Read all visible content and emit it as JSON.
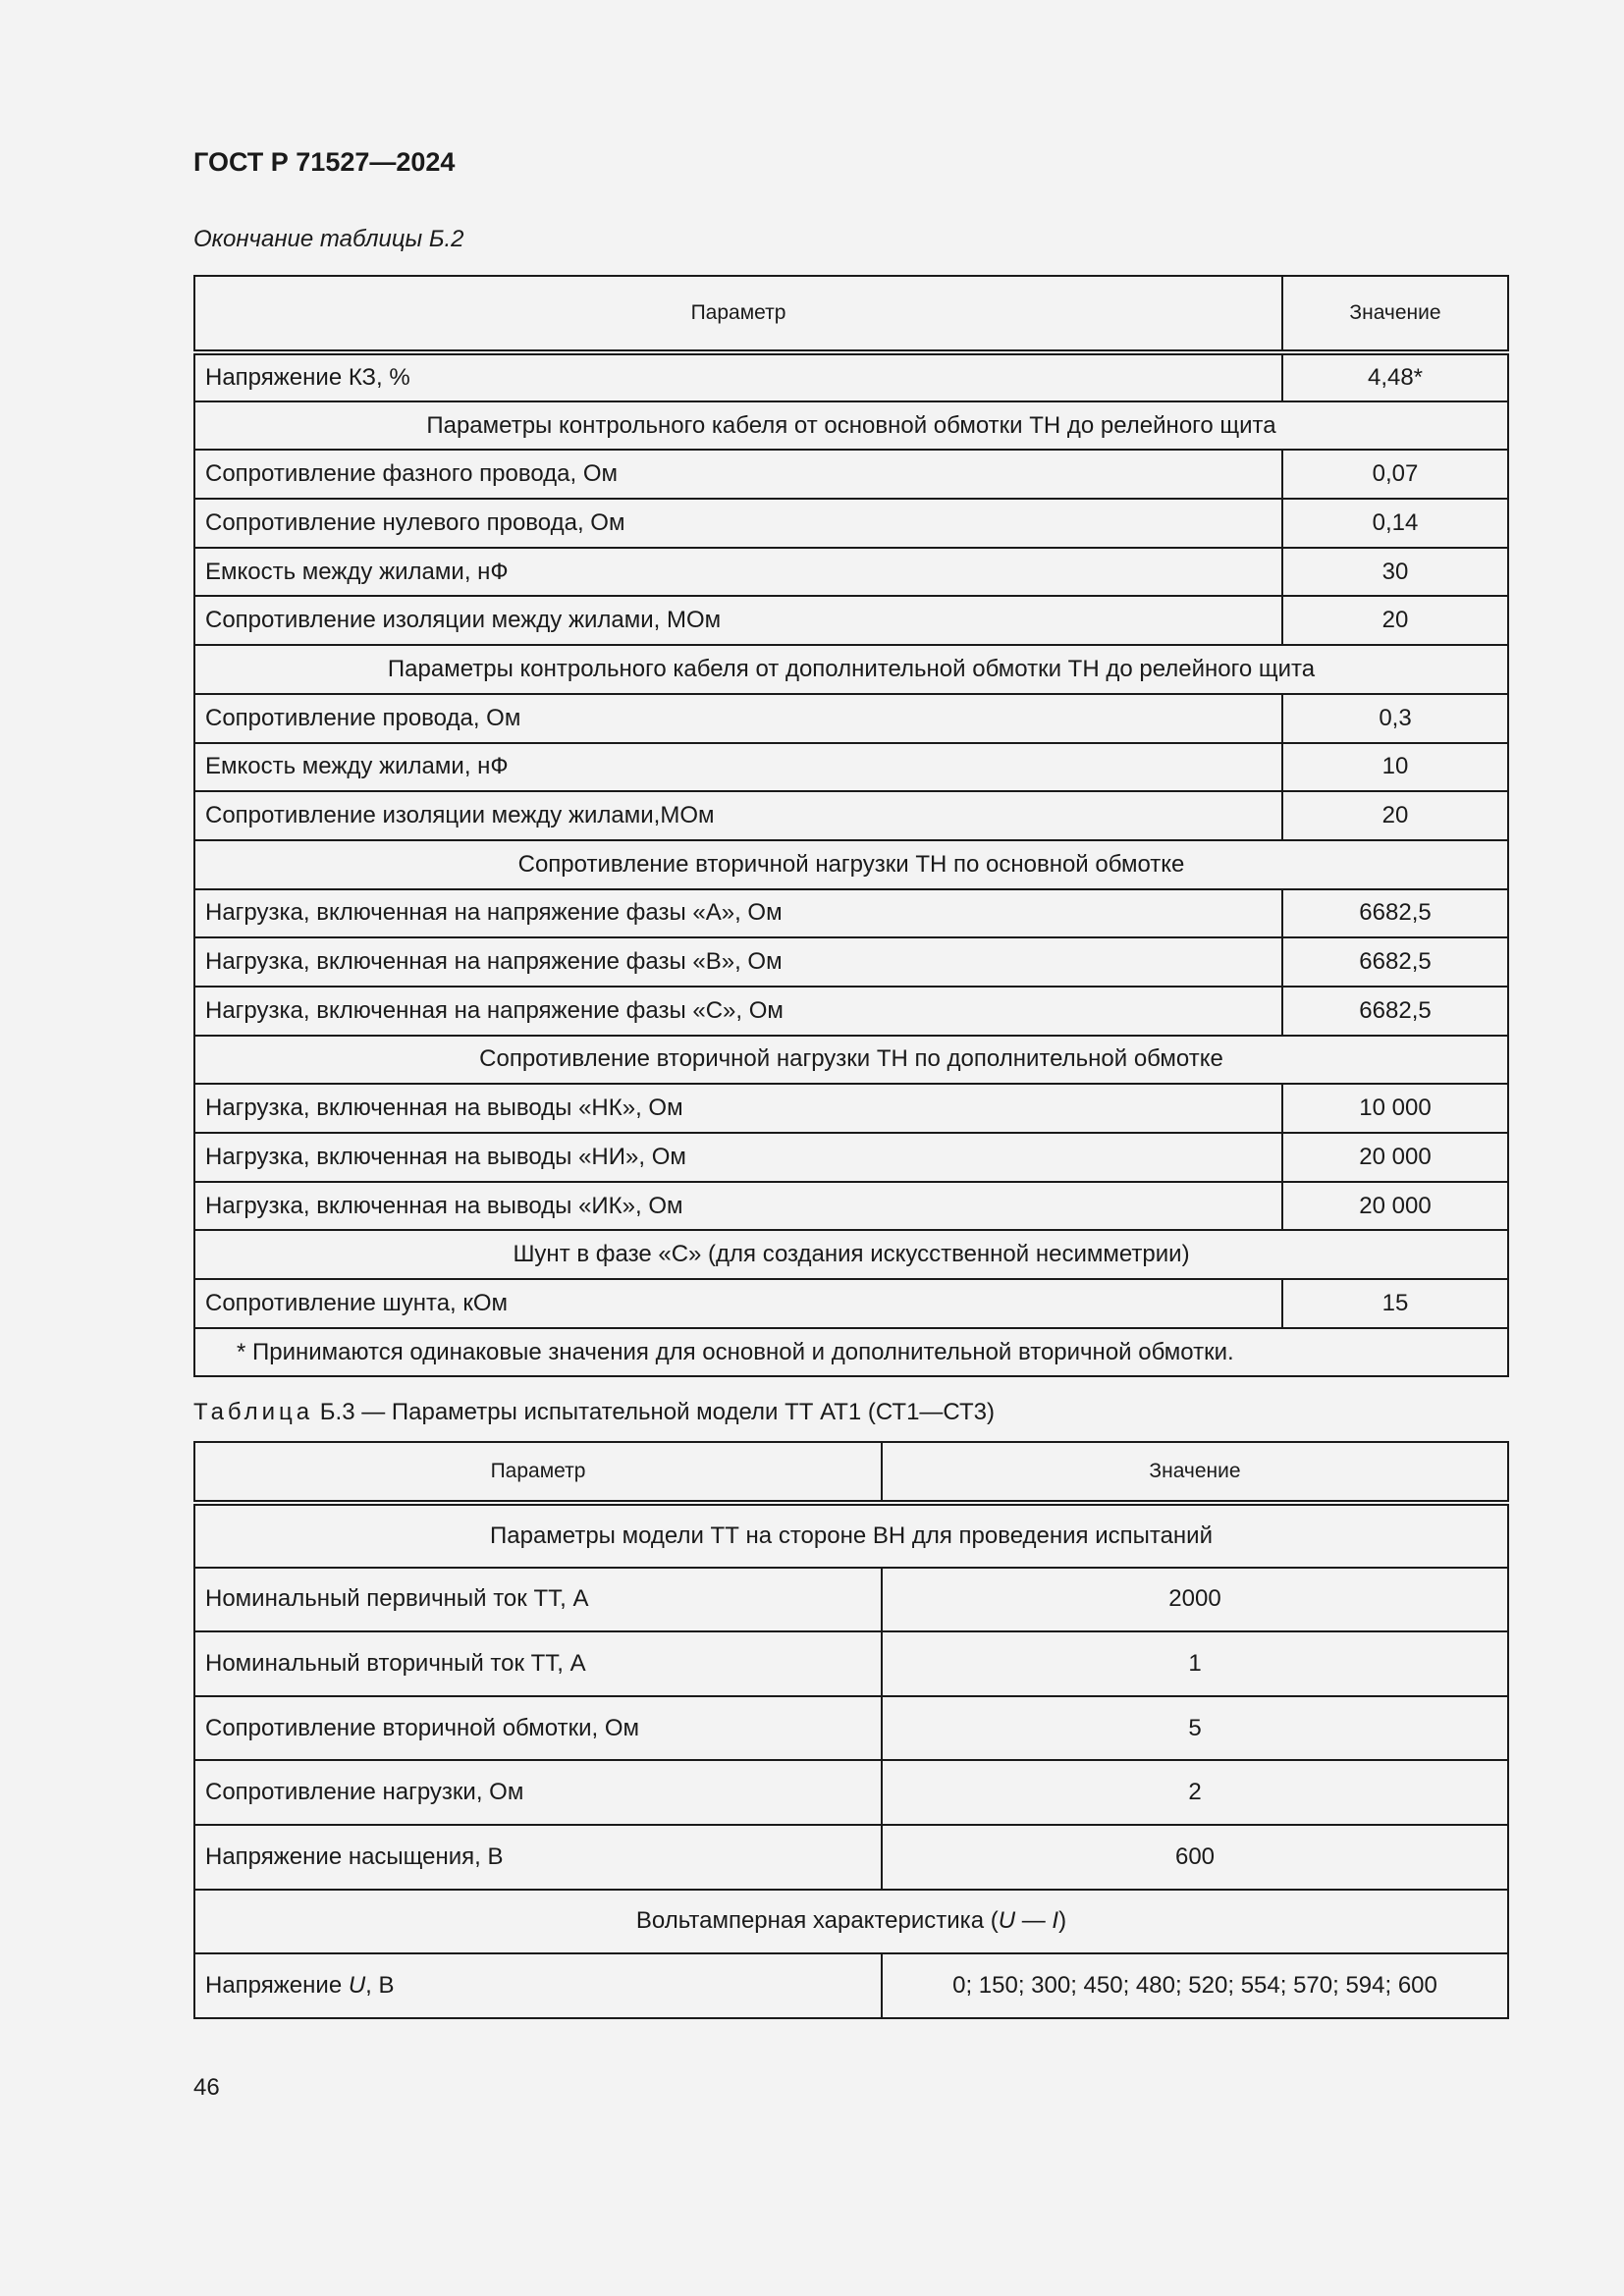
{
  "header": {
    "doc_title": "ГОСТ Р 71527—2024"
  },
  "table_b2": {
    "caption": "Окончание таблицы Б.2",
    "columns": [
      "Параметр",
      "Значение"
    ],
    "rows": [
      {
        "type": "row",
        "param": "Напряжение КЗ, %",
        "value": "4,48*"
      },
      {
        "type": "section",
        "param": "Параметры контрольного кабеля от основной обмотки ТН до релейного щита"
      },
      {
        "type": "row",
        "param": "Сопротивление фазного провода, Ом",
        "value": "0,07"
      },
      {
        "type": "row",
        "param": "Сопротивление нулевого провода, Ом",
        "value": "0,14"
      },
      {
        "type": "row",
        "param": "Емкость между жилами, нФ",
        "value": "30"
      },
      {
        "type": "row",
        "param": "Сопротивление изоляции между жилами, МОм",
        "value": "20"
      },
      {
        "type": "section",
        "param": "Параметры контрольного кабеля от дополнительной обмотки ТН до релейного щита"
      },
      {
        "type": "row",
        "param": "Сопротивление провода, Ом",
        "value": "0,3"
      },
      {
        "type": "row",
        "param": "Емкость между жилами, нФ",
        "value": "10"
      },
      {
        "type": "row",
        "param": "Сопротивление изоляции между жилами,МОм",
        "value": "20"
      },
      {
        "type": "section",
        "param": "Сопротивление вторичной нагрузки ТН по основной обмотке"
      },
      {
        "type": "row",
        "param": "Нагрузка, включенная на напряжение фазы «А», Ом",
        "value": "6682,5"
      },
      {
        "type": "row",
        "param": "Нагрузка, включенная на напряжение фазы «В», Ом",
        "value": "6682,5"
      },
      {
        "type": "row",
        "param": "Нагрузка, включенная на напряжение фазы «С», Ом",
        "value": "6682,5"
      },
      {
        "type": "section",
        "param": "Сопротивление вторичной нагрузки ТН по дополнительной обмотке"
      },
      {
        "type": "row",
        "param": "Нагрузка, включенная на выводы «НК», Ом",
        "value": "10 000"
      },
      {
        "type": "row",
        "param": "Нагрузка, включенная на выводы «НИ», Ом",
        "value": "20 000"
      },
      {
        "type": "row",
        "param": "Нагрузка, включенная на выводы «ИК», Ом",
        "value": "20 000"
      },
      {
        "type": "section",
        "param": "Шунт в фазе «С» (для создания искусственной несимметрии)"
      },
      {
        "type": "row",
        "param": "Сопротивление шунта, кОм",
        "value": "15"
      }
    ],
    "footnote": "*  Принимаются одинаковые значения для основной и дополнительной вторичной обмотки."
  },
  "table_b3": {
    "caption_label": "Таблица",
    "caption_text": "Б.3 — Параметры испытательной модели ТТ АТ1 (СТ1—СТ3)",
    "columns": [
      "Параметр",
      "Значение"
    ],
    "rows": [
      {
        "type": "section",
        "param": "Параметры модели ТТ на стороне ВН для проведения испытаний"
      },
      {
        "type": "row",
        "param": "Номинальный первичный ток ТТ, А",
        "value": "2000"
      },
      {
        "type": "row",
        "param": "Номинальный вторичный ток ТТ, А",
        "value": "1"
      },
      {
        "type": "row",
        "param": "Сопротивление вторичной обмотки, Ом",
        "value": "5"
      },
      {
        "type": "row",
        "param": "Сопротивление нагрузки, Ом",
        "value": "2"
      },
      {
        "type": "row",
        "param": "Напряжение насыщения, В",
        "value": "600"
      }
    ],
    "vah_section": {
      "prefix": "Вольтамперная характеристика (",
      "u": "U",
      "dash": " — ",
      "i": "I",
      "suffix": ")"
    },
    "voltage_row": {
      "prefix": "Напряжение ",
      "u": "U",
      "suffix": ", В",
      "value": "0; 150; 300; 450; 480; 520; 554; 570; 594; 600"
    }
  },
  "footer": {
    "page_number": "46"
  }
}
